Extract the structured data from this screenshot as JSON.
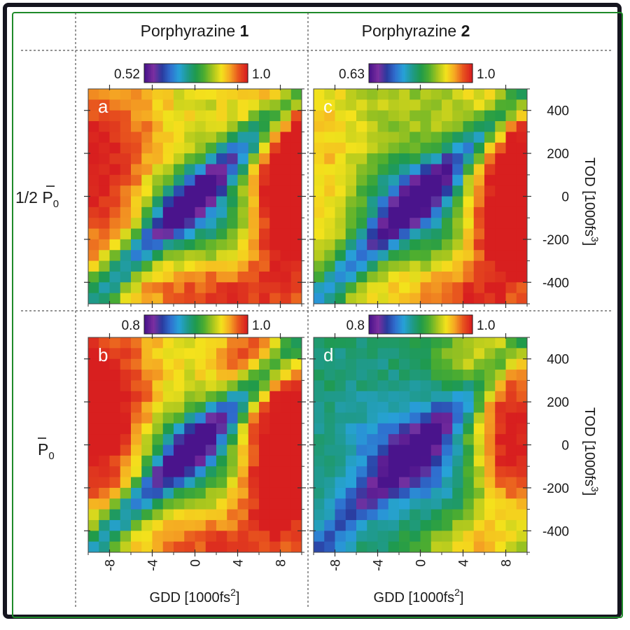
{
  "headers": {
    "col1": "Porphyrazine ",
    "col1_num": "1",
    "col2": "Porphyrazine ",
    "col2_num": "2",
    "row1_prefix": "1/2 ",
    "row1_symbol": "P",
    "row1_sub": "0",
    "row2_symbol": "P",
    "row2_sub": "0"
  },
  "axes": {
    "x_label": "GDD [1000fs",
    "x_label_sup": "2",
    "x_label_close": "]",
    "y_label": "TOD [1000fs",
    "y_label_sup": "3",
    "y_label_close": "]",
    "x_ticks": [
      -8,
      -4,
      0,
      4,
      8
    ],
    "y_ticks": [
      400,
      200,
      0,
      -200,
      -400
    ],
    "x_range": [
      -10,
      10
    ],
    "y_range": [
      -500,
      500
    ]
  },
  "colors": {
    "colormap": [
      "#4a148c",
      "#7b2fa0",
      "#2a3a9e",
      "#2f6fcf",
      "#27a2d8",
      "#1f9a8c",
      "#1f9a4b",
      "#4fae2f",
      "#a8c61e",
      "#f4e21c",
      "#f5a623",
      "#e8541e",
      "#d81f1f"
    ],
    "frame_outer": "#15151f",
    "frame_inner": "#1f8a2a"
  },
  "chart_data": [
    {
      "id": "a",
      "type": "heatmap",
      "panel_label": "a",
      "column": "Porphyrazine 1",
      "row": "1/2 P0",
      "colorbar_min": "0.52",
      "colorbar_max": "1.0",
      "base": 0.7,
      "valley": {
        "depth": 0.6,
        "width": 1.6,
        "center_depth": 0.42,
        "center_x": 0,
        "center_y": -50,
        "center_rx": 3.5,
        "center_ry": 140
      },
      "lobes": [
        {
          "x": -9,
          "y": 120,
          "rx": 4.5,
          "ry": 320,
          "amp": 0.32
        },
        {
          "x": 9.5,
          "y": -60,
          "rx": 3.2,
          "ry": 260,
          "amp": 0.48
        },
        {
          "x": 9.5,
          "y": 380,
          "rx": 3.0,
          "ry": 200,
          "amp": 0.25
        },
        {
          "x": 2,
          "y": -460,
          "rx": 5,
          "ry": 100,
          "amp": 0.25
        }
      ]
    },
    {
      "id": "c",
      "type": "heatmap",
      "panel_label": "c",
      "column": "Porphyrazine 2",
      "row": "1/2 P0",
      "colorbar_min": "0.63",
      "colorbar_max": "1.0",
      "base": 0.66,
      "valley": {
        "depth": 0.55,
        "width": 1.6,
        "center_depth": 0.42,
        "center_x": -0.5,
        "center_y": -30,
        "center_rx": 3.5,
        "center_ry": 140
      },
      "lobes": [
        {
          "x": 8.5,
          "y": -100,
          "rx": 3.0,
          "ry": 240,
          "amp": 0.55
        },
        {
          "x": 9.0,
          "y": 350,
          "rx": 2.8,
          "ry": 160,
          "amp": 0.25
        },
        {
          "x": -9,
          "y": 150,
          "rx": 3.0,
          "ry": 350,
          "amp": 0.14
        },
        {
          "x": 3,
          "y": -470,
          "rx": 4.5,
          "ry": 90,
          "amp": 0.25
        }
      ]
    },
    {
      "id": "b",
      "type": "heatmap",
      "panel_label": "b",
      "column": "Porphyrazine 1",
      "row": "P0",
      "colorbar_min": "0.8",
      "colorbar_max": "1.0",
      "base": 0.7,
      "valley": {
        "depth": 0.58,
        "width": 1.6,
        "center_depth": 0.42,
        "center_x": 0,
        "center_y": -30,
        "center_rx": 3.5,
        "center_ry": 140
      },
      "lobes": [
        {
          "x": -9.5,
          "y": 150,
          "rx": 4.0,
          "ry": 300,
          "amp": 0.46
        },
        {
          "x": 8.5,
          "y": -80,
          "rx": 3.5,
          "ry": 280,
          "amp": 0.5
        },
        {
          "x": 6,
          "y": 420,
          "rx": 3.0,
          "ry": 150,
          "amp": 0.2
        },
        {
          "x": 1,
          "y": -470,
          "rx": 4,
          "ry": 90,
          "amp": 0.22
        }
      ]
    },
    {
      "id": "d",
      "type": "heatmap",
      "panel_label": "d",
      "column": "Porphyrazine 2",
      "row": "P0",
      "colorbar_min": "0.8",
      "colorbar_max": "1.0",
      "base": 0.45,
      "valley": {
        "depth": 0.35,
        "width": 1.6,
        "center_depth": 0.3,
        "center_x": -0.5,
        "center_y": -50,
        "center_rx": 4.0,
        "center_ry": 160
      },
      "lobes": [
        {
          "x": 8.5,
          "y": -30,
          "rx": 3.0,
          "ry": 240,
          "amp": 0.6
        },
        {
          "x": 9.0,
          "y": 400,
          "rx": 2.8,
          "ry": 170,
          "amp": 0.28
        },
        {
          "x": 4.5,
          "y": -480,
          "rx": 3.5,
          "ry": 100,
          "amp": 0.3
        },
        {
          "x": 4,
          "y": 420,
          "rx": 2.5,
          "ry": 140,
          "amp": 0.15
        }
      ]
    }
  ]
}
